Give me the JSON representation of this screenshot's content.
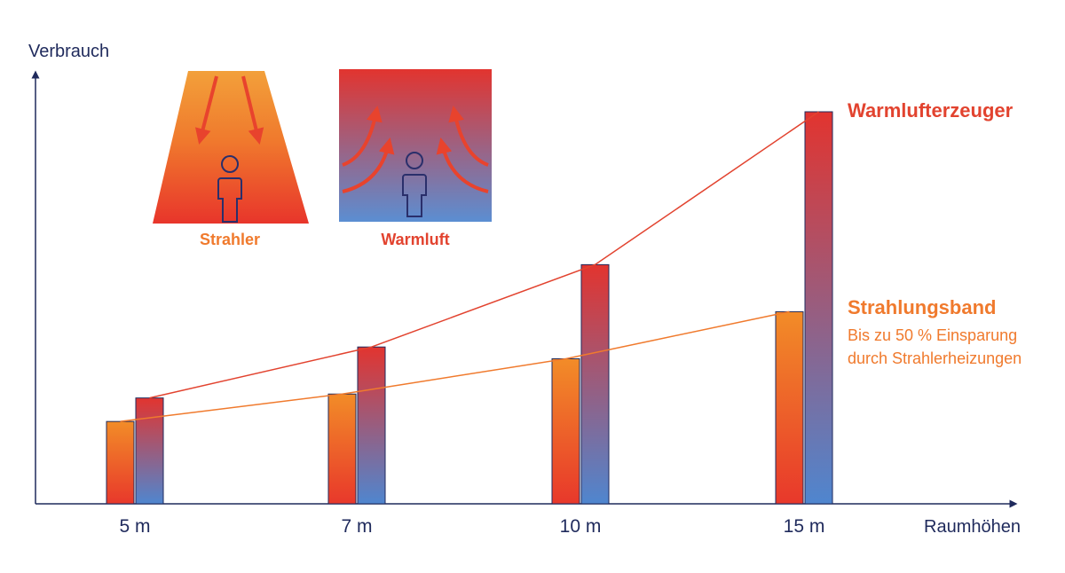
{
  "chart_data": {
    "type": "bar",
    "xlabel": "Raumhöhen",
    "ylabel": "Verbrauch",
    "categories": [
      "5 m",
      "7 m",
      "10 m",
      "15 m"
    ],
    "ylim": [
      0,
      100
    ],
    "grid": false,
    "series": [
      {
        "name": "Strahlungsband",
        "values": [
          21,
          28,
          37,
          49
        ],
        "color_top": "#f28c28",
        "color_bottom": "#e8382b",
        "note_line1": "Bis zu 50 % Einsparung",
        "note_line2": "durch Strahlerheizungen"
      },
      {
        "name": "Warmlufterzeuger",
        "values": [
          27,
          40,
          61,
          100
        ],
        "color_top": "#e2342f",
        "color_bottom": "#4f86cf"
      }
    ]
  },
  "illustrations": {
    "radiant": {
      "label": "Strahler",
      "icon": "person-under-radiant-heat-icon",
      "color": "#f07a2d"
    },
    "warm_air": {
      "label": "Warmluft",
      "icon": "person-in-warm-air-icon",
      "color": "#e2432f"
    }
  },
  "colors": {
    "axis": "#1f2a5c",
    "orange": "#f07a2d",
    "red": "#e2432f"
  }
}
